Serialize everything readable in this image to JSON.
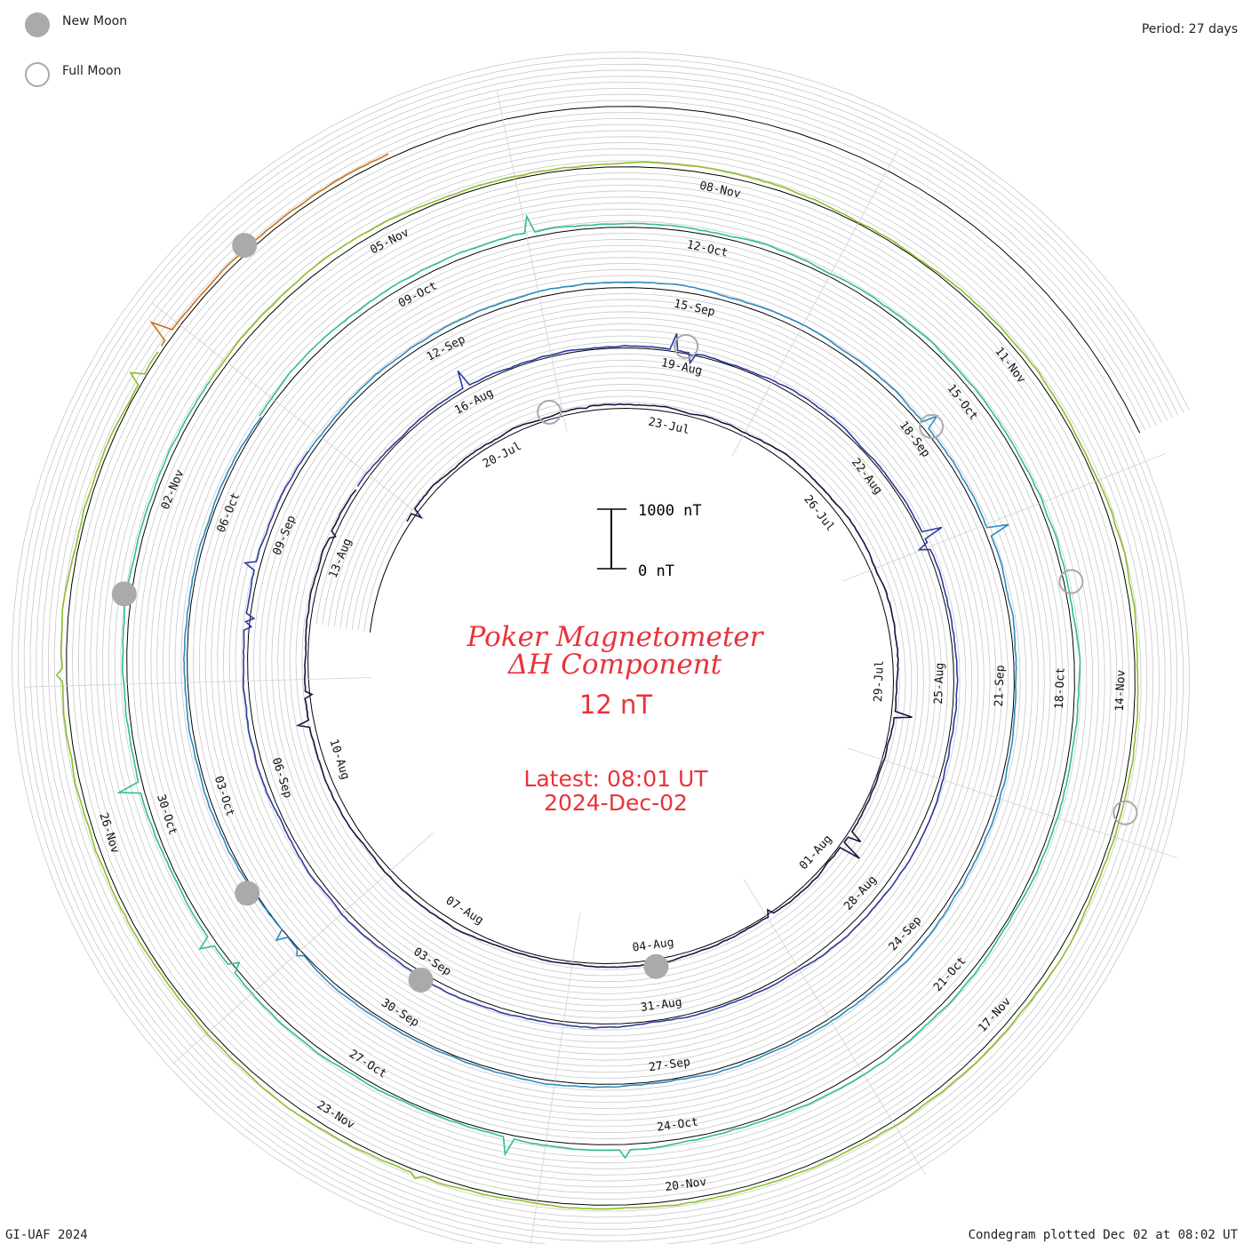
{
  "legend": {
    "new_moon_label": "New Moon",
    "full_moon_label": "Full Moon",
    "new_moon_color": "#aaaaaa",
    "full_moon_color": "#aaaaaa"
  },
  "period_label": "Period: 27 days",
  "footer": {
    "left": "GI-UAF 2024",
    "right": "Condegram plotted Dec 02 at 08:02 UT"
  },
  "center": {
    "title_line1": "Poker Magnetometer",
    "title_line2": "ΔH Component",
    "value": "12 nT",
    "latest_line1": "Latest: 08:01 UT",
    "latest_line2": "2024-Dec-02",
    "text_color": "#e8333a"
  },
  "scale_bar": {
    "top_label": "1000 nT",
    "bottom_label": "0 nT"
  },
  "chart_data": {
    "type": "line",
    "subtype": "condegram-spiral",
    "period_days": 27,
    "start_date": "2024-07-18",
    "end": "2024-12-02 08:01 UT",
    "scale_nT": [
      0,
      1000
    ],
    "grid": true,
    "rings": [
      {
        "color": "#1a1440",
        "date_labels": [
          "20-Jul",
          "23-Jul",
          "26-Jul",
          "29-Jul",
          "01-Aug",
          "04-Aug",
          "07-Aug",
          "10-Aug",
          "13-Aug"
        ]
      },
      {
        "color": "#2e3aa0",
        "date_labels": [
          "16-Aug",
          "19-Aug",
          "22-Aug",
          "25-Aug",
          "28-Aug",
          "31-Aug",
          "03-Sep",
          "06-Sep",
          "09-Sep"
        ]
      },
      {
        "color": "#2b8cbe",
        "date_labels": [
          "12-Sep",
          "15-Sep",
          "18-Sep",
          "21-Sep",
          "24-Sep",
          "27-Sep",
          "30-Sep",
          "03-Oct",
          "06-Oct"
        ]
      },
      {
        "color": "#2fbf8a",
        "date_labels": [
          "09-Oct",
          "12-Oct",
          "15-Oct",
          "18-Oct",
          "21-Oct",
          "24-Oct",
          "27-Oct",
          "30-Oct",
          "02-Nov"
        ]
      },
      {
        "color": "#8dbf2a",
        "date_labels": [
          "05-Nov",
          "08-Nov",
          "11-Nov",
          "14-Nov",
          "17-Nov",
          "20-Nov",
          "23-Nov",
          "26-Nov"
        ]
      },
      {
        "color": "#c8701a",
        "date_labels": []
      }
    ],
    "new_moons": [
      "2024-08-04",
      "2024-09-03",
      "2024-10-02",
      "2024-11-01",
      "2024-12-01"
    ],
    "full_moons": [
      "2024-07-21",
      "2024-08-19",
      "2024-09-18",
      "2024-10-17",
      "2024-11-15"
    ]
  }
}
